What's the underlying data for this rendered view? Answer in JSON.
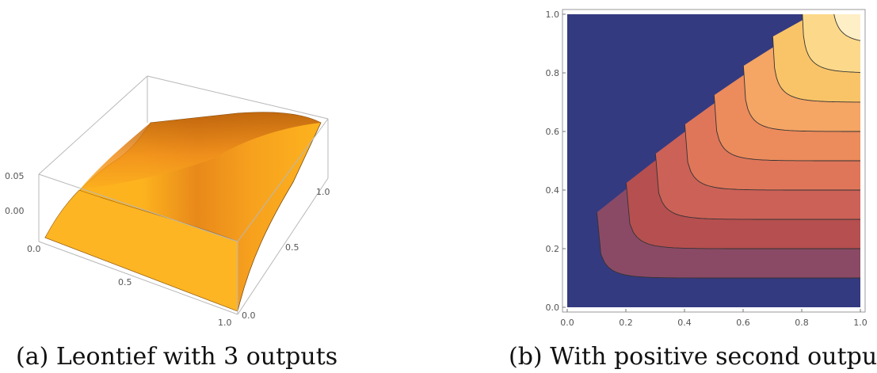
{
  "chart_data": [
    {
      "type": "surface3d",
      "title": "",
      "caption": "(a) Leontief with 3 outputs",
      "x_ticks": [
        "0.0",
        "0.5",
        "1.0"
      ],
      "y_ticks": [
        "0.0",
        "0.5",
        "1.0"
      ],
      "z_ticks": [
        "0.00",
        "0.05"
      ],
      "x_range": [
        0,
        1
      ],
      "y_range": [
        0,
        1
      ],
      "z_range": [
        -0.05,
        0.08
      ],
      "surface_color": "#FDB31E",
      "shade_color": "#C96A0A"
    },
    {
      "type": "contour",
      "title": "",
      "caption": "(b) With positive second output",
      "x_ticks": [
        "0.0",
        "0.2",
        "0.4",
        "0.6",
        "0.8",
        "1.0"
      ],
      "y_ticks": [
        "0.0",
        "0.2",
        "0.4",
        "0.6",
        "0.8",
        "1.0"
      ],
      "x_range": [
        0,
        1
      ],
      "y_range": [
        0,
        1
      ],
      "levels": [
        0.1,
        0.2,
        0.3,
        0.4,
        0.5,
        0.6,
        0.7,
        0.8,
        0.9
      ],
      "band_colors": [
        "#343A80",
        "#8A4A66",
        "#B64F4F",
        "#CC6157",
        "#DF7659",
        "#EC8B5C",
        "#F5A564",
        "#F9C468",
        "#FCD98A",
        "#FFEFC6"
      ],
      "contour_line_color": "#333333"
    }
  ]
}
